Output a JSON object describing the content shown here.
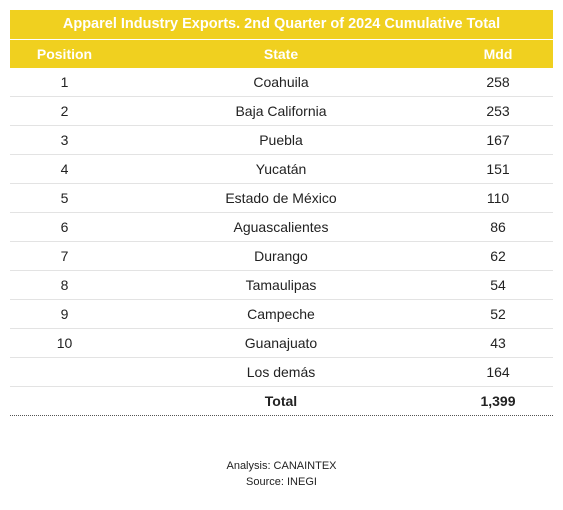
{
  "chart_data": {
    "type": "table",
    "title": "Apparel Industry Exports. 2nd Quarter of 2024 Cumulative Total",
    "columns": [
      "Position",
      "State",
      "Mdd"
    ],
    "rows": [
      {
        "position": "1",
        "state": "Coahuila",
        "mdd": "258"
      },
      {
        "position": "2",
        "state": "Baja California",
        "mdd": "253"
      },
      {
        "position": "3",
        "state": "Puebla",
        "mdd": "167"
      },
      {
        "position": "4",
        "state": "Yucatán",
        "mdd": "151"
      },
      {
        "position": "5",
        "state": "Estado de México",
        "mdd": "110"
      },
      {
        "position": "6",
        "state": "Aguascalientes",
        "mdd": "86"
      },
      {
        "position": "7",
        "state": "Durango",
        "mdd": "62"
      },
      {
        "position": "8",
        "state": "Tamaulipas",
        "mdd": "54"
      },
      {
        "position": "9",
        "state": "Campeche",
        "mdd": "52"
      },
      {
        "position": "10",
        "state": "Guanajuato",
        "mdd": "43"
      },
      {
        "position": "",
        "state": "Los demás",
        "mdd": "164"
      }
    ],
    "total": {
      "label": "Total",
      "mdd": "1,399"
    }
  },
  "footer": {
    "analysis": "Analysis: CANAINTEX",
    "source": "Source: INEGI"
  },
  "colors": {
    "header_bg": "#f0d01f",
    "header_text": "#ffffff"
  }
}
